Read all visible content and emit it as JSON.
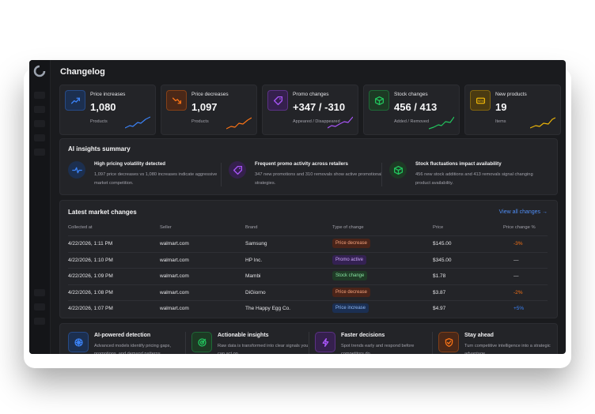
{
  "page": {
    "title": "Changelog"
  },
  "stats": [
    {
      "label": "Price increases",
      "value": "1,080",
      "sub": "Products",
      "icon": "trend-up-icon",
      "color": "#3b82f6",
      "bg": "#1c2f4f"
    },
    {
      "label": "Price decreases",
      "value": "1,097",
      "sub": "Products",
      "icon": "trend-down-icon",
      "color": "#f97316",
      "bg": "#4a2818"
    },
    {
      "label": "Promo changes",
      "value": "+347 / -310",
      "sub": "Appeared / Disappeared",
      "icon": "tag-icon",
      "color": "#a855f7",
      "bg": "#35204d"
    },
    {
      "label": "Stock changes",
      "value": "456 / 413",
      "sub": "Added / Removed",
      "icon": "box-icon",
      "color": "#22c55e",
      "bg": "#1d3a24"
    },
    {
      "label": "New products",
      "value": "19",
      "sub": "Items",
      "icon": "new-badge-icon",
      "color": "#eab308",
      "bg": "#4a3a12"
    }
  ],
  "insights": {
    "title": "AI insights summary",
    "items": [
      {
        "title": "High pricing volatility detected",
        "text": "1,097 price decreases vs 1,080 increases indicate aggressive market competition.",
        "icon": "pulse-icon",
        "color": "#3b82f6",
        "bg": "#1c2f4f"
      },
      {
        "title": "Frequent promo activity across retailers",
        "text": "347 new promotions and 310 removals show active promotional strategies.",
        "icon": "tag-icon",
        "color": "#a855f7",
        "bg": "#35204d"
      },
      {
        "title": "Stock fluctuations impact availability",
        "text": "456 new stock additions and 413 removals signal changing product availability.",
        "icon": "box-icon",
        "color": "#22c55e",
        "bg": "#1d3a24"
      }
    ]
  },
  "table": {
    "title": "Latest market changes",
    "view_all": "View all changes →",
    "columns": [
      "Collected at",
      "Seller",
      "Brand",
      "Type of change",
      "Price",
      "Price change %"
    ],
    "rows": [
      {
        "collected": "4/22/2026, 1:11 PM",
        "seller": "walmart.com",
        "brand": "Samsung",
        "type": "Price decrease",
        "type_kind": "decrease",
        "price": "$145.00",
        "change": "-3%",
        "change_kind": "neg"
      },
      {
        "collected": "4/22/2026, 1:10 PM",
        "seller": "walmart.com",
        "brand": "HP Inc.",
        "type": "Promo active",
        "type_kind": "promo",
        "price": "$345.00",
        "change": "—",
        "change_kind": "none"
      },
      {
        "collected": "4/22/2026, 1:09 PM",
        "seller": "walmart.com",
        "brand": "Mambi",
        "type": "Stock change",
        "type_kind": "stock",
        "price": "$1.78",
        "change": "—",
        "change_kind": "none"
      },
      {
        "collected": "4/22/2026, 1:08 PM",
        "seller": "walmart.com",
        "brand": "DiGiorno",
        "type": "Price decrease",
        "type_kind": "decrease",
        "price": "$3.87",
        "change": "-2%",
        "change_kind": "neg"
      },
      {
        "collected": "4/22/2026, 1:07 PM",
        "seller": "walmart.com",
        "brand": "The Happy Egg Co.",
        "type": "Price increase",
        "type_kind": "increase",
        "price": "$4.97",
        "change": "+5%",
        "change_kind": "pos"
      }
    ]
  },
  "features": [
    {
      "title": "AI-powered detection",
      "text": "Advanced models identify pricing gaps, promotions, and demand patterns.",
      "icon": "brain-icon",
      "color": "#3b82f6",
      "bg": "#1c2f4f"
    },
    {
      "title": "Actionable insights",
      "text": "Raw data is transformed into clear signals you can act on.",
      "icon": "target-icon",
      "color": "#22c55e",
      "bg": "#1d3a24"
    },
    {
      "title": "Faster decisions",
      "text": "Spot trends early and respond before competitors do.",
      "icon": "lightning-icon",
      "color": "#a855f7",
      "bg": "#35204d"
    },
    {
      "title": "Stay ahead",
      "text": "Turn competitive intelligence into a strategic advantage.",
      "icon": "shield-icon",
      "color": "#f97316",
      "bg": "#4a2818"
    }
  ],
  "badge_colors": {
    "decrease": {
      "bg": "#4a2419",
      "fg": "#f6a27c"
    },
    "promo": {
      "bg": "#342152",
      "fg": "#c9a5f7"
    },
    "stock": {
      "bg": "#1f3b26",
      "fg": "#86e0a0"
    },
    "increase": {
      "bg": "#1b2f52",
      "fg": "#8db8f7"
    }
  },
  "change_colors": {
    "neg": "#f97316",
    "pos": "#3b82f6",
    "none": "#d4d4d8"
  }
}
